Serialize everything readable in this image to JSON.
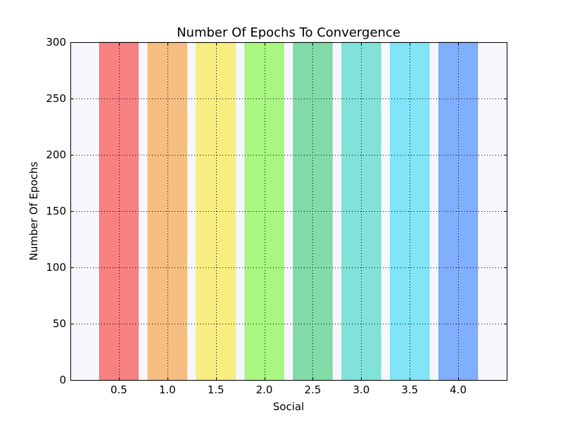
{
  "chart_data": {
    "type": "bar",
    "title": "Number Of Epochs To Convergence",
    "xlabel": "Social",
    "ylabel": "Number Of Epochs",
    "categories": [
      "0.5",
      "1.0",
      "1.5",
      "2.0",
      "2.5",
      "3.0",
      "3.5",
      "4.0"
    ],
    "x": [
      0.5,
      1.0,
      1.5,
      2.0,
      2.5,
      3.0,
      3.5,
      4.0
    ],
    "values": [
      300,
      300,
      300,
      300,
      300,
      300,
      300,
      300
    ],
    "bar_width": 0.4,
    "colors": [
      "#f78181",
      "#f7be81",
      "#f7ed81",
      "#a8f781",
      "#81dca8",
      "#81e2da",
      "#81e4f7",
      "#81afff"
    ],
    "edge_colors": [
      "#f07575",
      "#efb370",
      "#f0e270",
      "#9cec72",
      "#70cf97",
      "#70d5cc",
      "#6ed8ee",
      "#6fa0f5"
    ],
    "xlim": [
      0.0,
      4.5
    ],
    "ylim": [
      0,
      300
    ],
    "x_ticks": [
      0.5,
      1.0,
      1.5,
      2.0,
      2.5,
      3.0,
      3.5,
      4.0
    ],
    "y_ticks": [
      0,
      50,
      100,
      150,
      200,
      250,
      300
    ],
    "y_tick_labels": [
      "0",
      "50",
      "100",
      "150",
      "200",
      "250",
      "300"
    ],
    "grid": true,
    "plot_background": "#f6f7fc"
  }
}
